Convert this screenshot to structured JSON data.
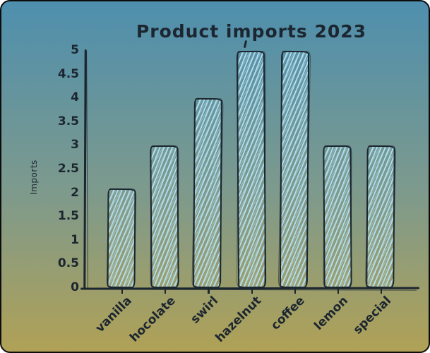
{
  "page": {
    "colors": {
      "background_top": "#4e8fae",
      "background_bottom": "#b0a156",
      "ink": "#1c2630",
      "bar_hatch": "#b3e0f2"
    }
  },
  "chart_data": {
    "type": "bar",
    "title": "Product imports 2023",
    "xlabel": "",
    "ylabel": "Imports",
    "categories": [
      "vanilla",
      "hocolate",
      "swirl",
      "hazelnut",
      "coffee",
      "lemon",
      "special"
    ],
    "values": [
      2.1,
      3,
      4,
      5,
      5,
      3,
      3
    ],
    "ylim": [
      0,
      5
    ],
    "ytick_step": 0.5,
    "ytick_labels": [
      "0",
      "0.5",
      "1",
      "1.5",
      "2",
      "2.5",
      "3",
      "3.5",
      "4",
      "4.5",
      "5"
    ],
    "grid": false,
    "legend": "none",
    "style": "hand-drawn sketch bars with light-blue hatching on blue-to-khaki gradient"
  }
}
